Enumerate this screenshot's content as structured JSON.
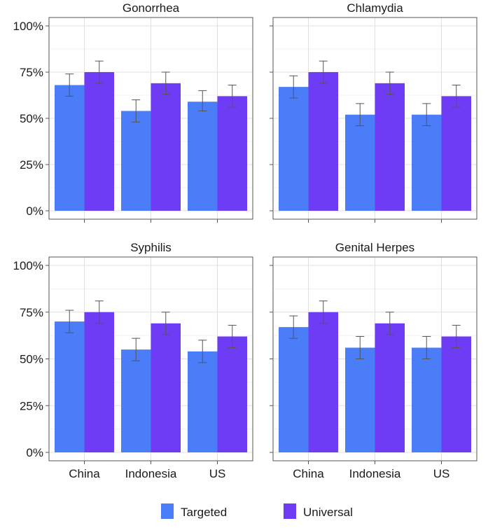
{
  "chart_data": {
    "type": "bar",
    "categories": [
      "China",
      "Indonesia",
      "US"
    ],
    "y_ticks": [
      "0%",
      "25%",
      "50%",
      "75%",
      "100%"
    ],
    "ylim": [
      0,
      100
    ],
    "grid": true,
    "legend": {
      "placement": "bottom",
      "items": [
        {
          "label": "Targeted",
          "color": "#4a7df7"
        },
        {
          "label": "Universal",
          "color": "#6e3cf5"
        }
      ]
    },
    "panels": [
      {
        "title": "Gonorrhea",
        "series": [
          {
            "name": "Targeted",
            "values": [
              68,
              54,
              59
            ],
            "err_low": [
              62,
              48,
              54
            ],
            "err_high": [
              74,
              60,
              65
            ]
          },
          {
            "name": "Universal",
            "values": [
              75,
              69,
              62
            ],
            "err_low": [
              69,
              63,
              56
            ],
            "err_high": [
              81,
              75,
              68
            ]
          }
        ]
      },
      {
        "title": "Chlamydia",
        "series": [
          {
            "name": "Targeted",
            "values": [
              67,
              52,
              52
            ],
            "err_low": [
              61,
              46,
              46
            ],
            "err_high": [
              73,
              58,
              58
            ]
          },
          {
            "name": "Universal",
            "values": [
              75,
              69,
              62
            ],
            "err_low": [
              69,
              63,
              56
            ],
            "err_high": [
              81,
              75,
              68
            ]
          }
        ]
      },
      {
        "title": "Syphilis",
        "series": [
          {
            "name": "Targeted",
            "values": [
              70,
              55,
              54
            ],
            "err_low": [
              64,
              49,
              48
            ],
            "err_high": [
              76,
              61,
              60
            ]
          },
          {
            "name": "Universal",
            "values": [
              75,
              69,
              62
            ],
            "err_low": [
              69,
              63,
              56
            ],
            "err_high": [
              81,
              75,
              68
            ]
          }
        ]
      },
      {
        "title": "Genital Herpes",
        "series": [
          {
            "name": "Targeted",
            "values": [
              67,
              56,
              56
            ],
            "err_low": [
              61,
              50,
              50
            ],
            "err_high": [
              73,
              62,
              62
            ]
          },
          {
            "name": "Universal",
            "values": [
              75,
              69,
              62
            ],
            "err_low": [
              69,
              63,
              56
            ],
            "err_high": [
              81,
              75,
              68
            ]
          }
        ]
      }
    ]
  }
}
